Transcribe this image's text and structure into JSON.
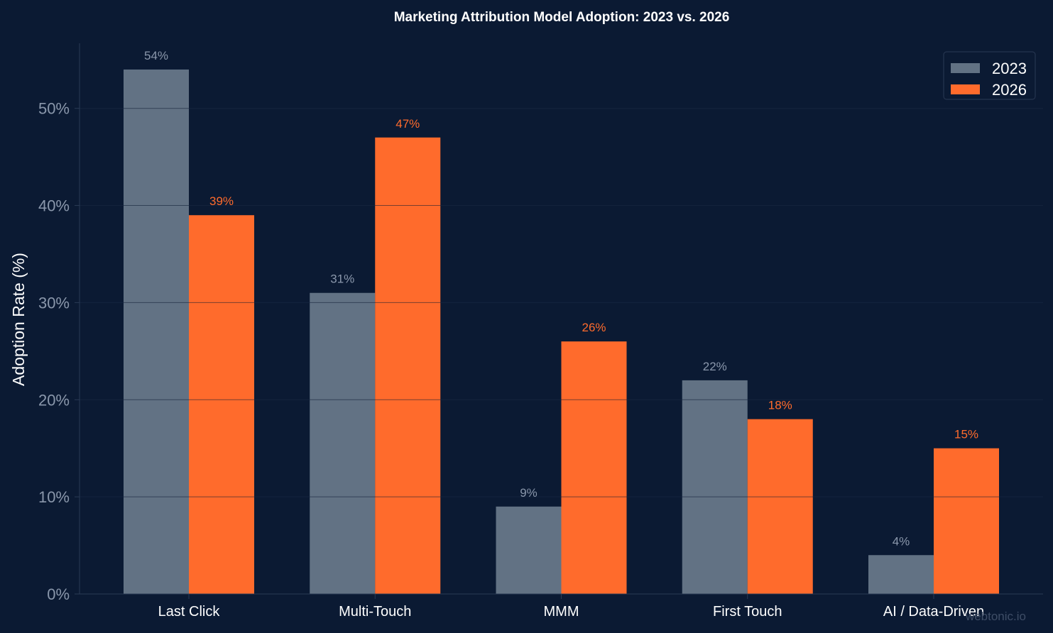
{
  "chart_data": {
    "type": "bar",
    "title": "Marketing Attribution Model Adoption: 2023 vs. 2026",
    "xlabel": "",
    "ylabel": "Adoption Rate (%)",
    "categories": [
      "Last Click",
      "Multi-Touch",
      "MMM",
      "First Touch",
      "AI / Data-Driven"
    ],
    "series": [
      {
        "name": "2023",
        "values": [
          54,
          31,
          9,
          22,
          4
        ],
        "labels": [
          "54%",
          "31%",
          "9%",
          "22%",
          "4%"
        ],
        "color": "#627284",
        "label_color": "#8a97ab"
      },
      {
        "name": "2026",
        "values": [
          39,
          47,
          26,
          18,
          15
        ],
        "labels": [
          "39%",
          "47%",
          "26%",
          "18%",
          "15%"
        ],
        "color": "#ff6b2c",
        "label_color": "#ff6b2c"
      }
    ],
    "ylim": [
      0,
      56.7
    ],
    "yticks": [
      0,
      10,
      20,
      30,
      40,
      50
    ],
    "ytick_labels": [
      "0%",
      "10%",
      "20%",
      "30%",
      "40%",
      "50%"
    ],
    "grid": true,
    "legend_position": "top-right"
  },
  "watermark": "webtonic.io",
  "colors": {
    "background": "#0b1a33",
    "grid": "#1e2d47",
    "axis": "#2a3a55"
  }
}
